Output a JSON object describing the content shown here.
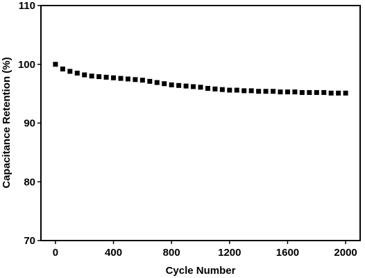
{
  "chart_data": {
    "type": "scatter",
    "title": "",
    "xlabel": "Cycle Number",
    "ylabel": "Capacitance Retention (%)",
    "xlim": [
      -100,
      2100
    ],
    "ylim": [
      70,
      110
    ],
    "x_ticks": [
      0,
      400,
      800,
      1200,
      1600,
      2000
    ],
    "y_ticks": [
      70,
      80,
      90,
      100,
      110
    ],
    "x_tick_labels": [
      "0",
      "400",
      "800",
      "1200",
      "1600",
      "2000"
    ],
    "y_tick_labels": [
      "70",
      "80",
      "90",
      "100",
      "110"
    ],
    "marker": "square",
    "marker_color": "#000000",
    "grid": false,
    "series": [
      {
        "x": [
          0,
          50,
          100,
          150,
          200,
          250,
          300,
          350,
          400,
          450,
          500,
          550,
          600,
          650,
          700,
          750,
          800,
          850,
          900,
          950,
          1000,
          1050,
          1100,
          1150,
          1200,
          1250,
          1300,
          1350,
          1400,
          1450,
          1500,
          1550,
          1600,
          1650,
          1700,
          1750,
          1800,
          1850,
          1900,
          1950,
          2000
        ],
        "values": [
          100.0,
          99.2,
          98.8,
          98.5,
          98.2,
          98.0,
          97.9,
          97.8,
          97.7,
          97.6,
          97.5,
          97.4,
          97.3,
          97.1,
          96.9,
          96.7,
          96.5,
          96.4,
          96.3,
          96.2,
          96.1,
          95.9,
          95.8,
          95.7,
          95.6,
          95.6,
          95.5,
          95.5,
          95.4,
          95.4,
          95.4,
          95.3,
          95.3,
          95.3,
          95.2,
          95.2,
          95.2,
          95.2,
          95.1,
          95.1,
          95.1
        ]
      }
    ]
  }
}
